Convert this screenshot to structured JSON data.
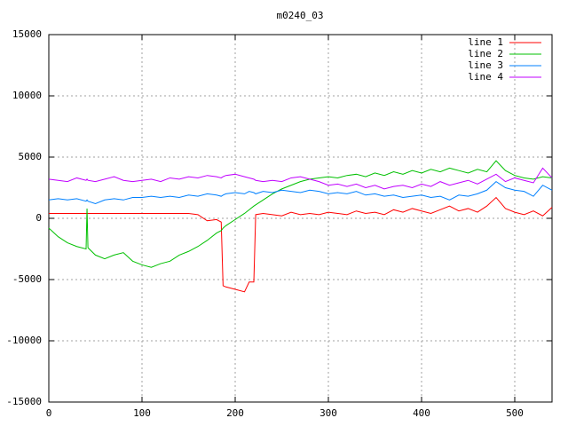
{
  "chart_data": {
    "type": "line",
    "title": "m0240_03",
    "x": [
      0,
      10,
      20,
      30,
      40,
      41,
      42,
      50,
      60,
      70,
      80,
      90,
      100,
      110,
      120,
      130,
      140,
      150,
      160,
      170,
      180,
      185,
      187,
      190,
      200,
      210,
      215,
      220,
      222,
      230,
      240,
      250,
      260,
      270,
      280,
      290,
      300,
      310,
      320,
      330,
      340,
      350,
      360,
      370,
      380,
      390,
      400,
      410,
      420,
      430,
      440,
      450,
      460,
      470,
      480,
      490,
      500,
      510,
      520,
      530,
      540
    ],
    "series": [
      {
        "name": "line 1",
        "color": "#ff0000",
        "values": [
          400,
          400,
          400,
          400,
          400,
          400,
          400,
          400,
          400,
          400,
          400,
          400,
          400,
          400,
          400,
          400,
          400,
          400,
          300,
          -200,
          -100,
          -300,
          -5500,
          -5600,
          -5800,
          -6000,
          -5200,
          -5200,
          300,
          400,
          300,
          200,
          500,
          300,
          400,
          300,
          500,
          400,
          300,
          600,
          400,
          500,
          300,
          700,
          500,
          800,
          600,
          400,
          700,
          1000,
          600,
          800,
          500,
          1000,
          1700,
          800,
          500,
          300,
          600,
          200,
          900
        ]
      },
      {
        "name": "line 2",
        "color": "#00c000",
        "values": [
          -800,
          -1500,
          -2000,
          -2300,
          -2500,
          800,
          -2400,
          -3000,
          -3300,
          -3000,
          -2800,
          -3500,
          -3800,
          -4000,
          -3700,
          -3500,
          -3000,
          -2700,
          -2300,
          -1800,
          -1200,
          -1000,
          -800,
          -600,
          -100,
          400,
          700,
          1000,
          1100,
          1500,
          2000,
          2400,
          2700,
          3000,
          3200,
          3300,
          3400,
          3300,
          3500,
          3600,
          3400,
          3700,
          3500,
          3800,
          3600,
          3900,
          3700,
          4000,
          3800,
          4100,
          3900,
          3700,
          4000,
          3800,
          4700,
          3900,
          3500,
          3300,
          3200,
          3400,
          3300
        ]
      },
      {
        "name": "line 3",
        "color": "#0080ff",
        "values": [
          1500,
          1600,
          1500,
          1600,
          1400,
          1500,
          1400,
          1200,
          1500,
          1600,
          1500,
          1700,
          1700,
          1800,
          1700,
          1800,
          1700,
          1900,
          1800,
          2000,
          1900,
          1800,
          1900,
          2000,
          2100,
          2000,
          2200,
          2100,
          2000,
          2200,
          2100,
          2300,
          2200,
          2100,
          2300,
          2200,
          2000,
          2100,
          2000,
          2200,
          1900,
          2000,
          1800,
          1900,
          1700,
          1800,
          1900,
          1700,
          1800,
          1500,
          1900,
          1800,
          2000,
          2300,
          3000,
          2500,
          2300,
          2200,
          1800,
          2700,
          2300
        ]
      },
      {
        "name": "line 4",
        "color": "#c000ff",
        "values": [
          3200,
          3100,
          3000,
          3300,
          3100,
          3200,
          3100,
          3000,
          3200,
          3400,
          3100,
          3000,
          3100,
          3200,
          3000,
          3300,
          3200,
          3400,
          3300,
          3500,
          3400,
          3300,
          3400,
          3500,
          3600,
          3400,
          3300,
          3200,
          3100,
          3000,
          3100,
          3000,
          3300,
          3400,
          3200,
          3000,
          2700,
          2800,
          2600,
          2800,
          2500,
          2700,
          2400,
          2600,
          2700,
          2500,
          2800,
          2600,
          3000,
          2700,
          2900,
          3100,
          2800,
          3200,
          3600,
          3000,
          3300,
          3100,
          2900,
          4100,
          3300
        ]
      }
    ],
    "xlim": [
      0,
      540
    ],
    "ylim": [
      -15000,
      15000
    ],
    "xticks": [
      0,
      100,
      200,
      300,
      400,
      500
    ],
    "yticks": [
      15000,
      10000,
      5000,
      0,
      -5000,
      -10000,
      -15000
    ],
    "grid": true,
    "legend": "top-right"
  }
}
